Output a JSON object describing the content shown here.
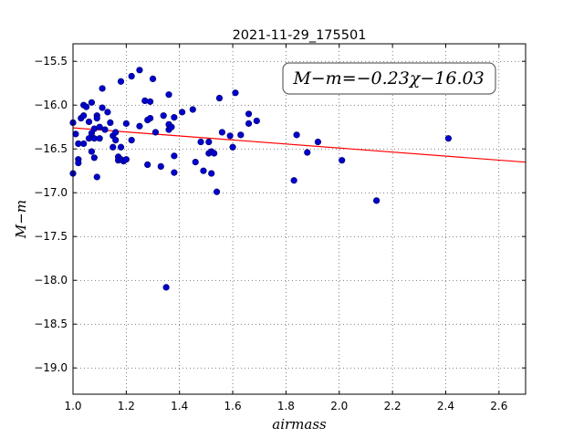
{
  "chart_data": {
    "type": "scatter",
    "title": "2021-11-29_175501",
    "xlabel": "airmass",
    "ylabel": "M−m",
    "annotation": "M−m=−0.23χ−16.03",
    "xlim": [
      1.0,
      2.7
    ],
    "ylim": [
      -19.3,
      -15.3
    ],
    "y_inverted": true,
    "grid": true,
    "x_ticks": [
      1.0,
      1.2,
      1.4,
      1.6,
      1.8,
      2.0,
      2.2,
      2.4,
      2.6
    ],
    "x_tick_labels": [
      "1.0",
      "1.2",
      "1.4",
      "1.6",
      "1.8",
      "2.0",
      "2.2",
      "2.4",
      "2.6"
    ],
    "y_ticks": [
      -15.5,
      -16.0,
      -16.5,
      -17.0,
      -17.5,
      -18.0,
      -18.5,
      -19.0
    ],
    "y_tick_labels": [
      "−15.5",
      "−16.0",
      "−16.5",
      "−17.0",
      "−17.5",
      "−18.0",
      "−18.5",
      "−19.0"
    ],
    "point_color": "#0000cc",
    "fit_line": {
      "slope": -0.23,
      "intercept": -16.03,
      "color": "#ff0000"
    },
    "points": [
      [
        1.0,
        -16.2
      ],
      [
        1.0,
        -16.78
      ],
      [
        1.01,
        -16.33
      ],
      [
        1.02,
        -16.44
      ],
      [
        1.02,
        -16.62
      ],
      [
        1.02,
        -16.66
      ],
      [
        1.03,
        -16.15
      ],
      [
        1.04,
        -16.0
      ],
      [
        1.04,
        -16.12
      ],
      [
        1.04,
        -16.44
      ],
      [
        1.05,
        -16.02
      ],
      [
        1.06,
        -16.19
      ],
      [
        1.06,
        -16.38
      ],
      [
        1.07,
        -16.53
      ],
      [
        1.07,
        -15.97
      ],
      [
        1.07,
        -16.32
      ],
      [
        1.08,
        -16.27
      ],
      [
        1.08,
        -16.38
      ],
      [
        1.08,
        -16.6
      ],
      [
        1.09,
        -16.12
      ],
      [
        1.09,
        -16.15
      ],
      [
        1.09,
        -16.82
      ],
      [
        1.1,
        -16.25
      ],
      [
        1.1,
        -16.38
      ],
      [
        1.11,
        -16.03
      ],
      [
        1.11,
        -15.81
      ],
      [
        1.12,
        -16.28
      ],
      [
        1.13,
        -16.08
      ],
      [
        1.14,
        -16.2
      ],
      [
        1.15,
        -16.35
      ],
      [
        1.15,
        -16.48
      ],
      [
        1.16,
        -16.4
      ],
      [
        1.16,
        -16.31
      ],
      [
        1.17,
        -16.59
      ],
      [
        1.17,
        -16.63
      ],
      [
        1.18,
        -15.73
      ],
      [
        1.18,
        -16.48
      ],
      [
        1.18,
        -16.62
      ],
      [
        1.19,
        -16.64
      ],
      [
        1.2,
        -16.21
      ],
      [
        1.2,
        -16.62
      ],
      [
        1.22,
        -16.4
      ],
      [
        1.22,
        -15.67
      ],
      [
        1.25,
        -15.6
      ],
      [
        1.25,
        -16.24
      ],
      [
        1.27,
        -15.95
      ],
      [
        1.28,
        -16.17
      ],
      [
        1.28,
        -16.68
      ],
      [
        1.29,
        -16.15
      ],
      [
        1.29,
        -15.96
      ],
      [
        1.3,
        -15.7
      ],
      [
        1.31,
        -16.31
      ],
      [
        1.33,
        -16.7
      ],
      [
        1.34,
        -16.12
      ],
      [
        1.35,
        -18.08
      ],
      [
        1.36,
        -16.22
      ],
      [
        1.36,
        -16.28
      ],
      [
        1.36,
        -15.88
      ],
      [
        1.37,
        -16.25
      ],
      [
        1.38,
        -16.77
      ],
      [
        1.38,
        -16.58
      ],
      [
        1.38,
        -16.14
      ],
      [
        1.41,
        -16.08
      ],
      [
        1.45,
        -16.05
      ],
      [
        1.46,
        -16.65
      ],
      [
        1.48,
        -16.42
      ],
      [
        1.49,
        -16.75
      ],
      [
        1.51,
        -16.42
      ],
      [
        1.51,
        -16.55
      ],
      [
        1.52,
        -16.53
      ],
      [
        1.52,
        -16.78
      ],
      [
        1.53,
        -16.55
      ],
      [
        1.54,
        -16.99
      ],
      [
        1.55,
        -15.92
      ],
      [
        1.56,
        -16.31
      ],
      [
        1.59,
        -16.35
      ],
      [
        1.6,
        -16.48
      ],
      [
        1.61,
        -15.86
      ],
      [
        1.63,
        -16.34
      ],
      [
        1.66,
        -16.1
      ],
      [
        1.66,
        -16.21
      ],
      [
        1.69,
        -16.18
      ],
      [
        1.83,
        -16.86
      ],
      [
        1.84,
        -16.34
      ],
      [
        1.88,
        -16.54
      ],
      [
        1.92,
        -16.42
      ],
      [
        2.01,
        -16.63
      ],
      [
        2.14,
        -17.09
      ],
      [
        2.41,
        -16.38
      ]
    ]
  }
}
